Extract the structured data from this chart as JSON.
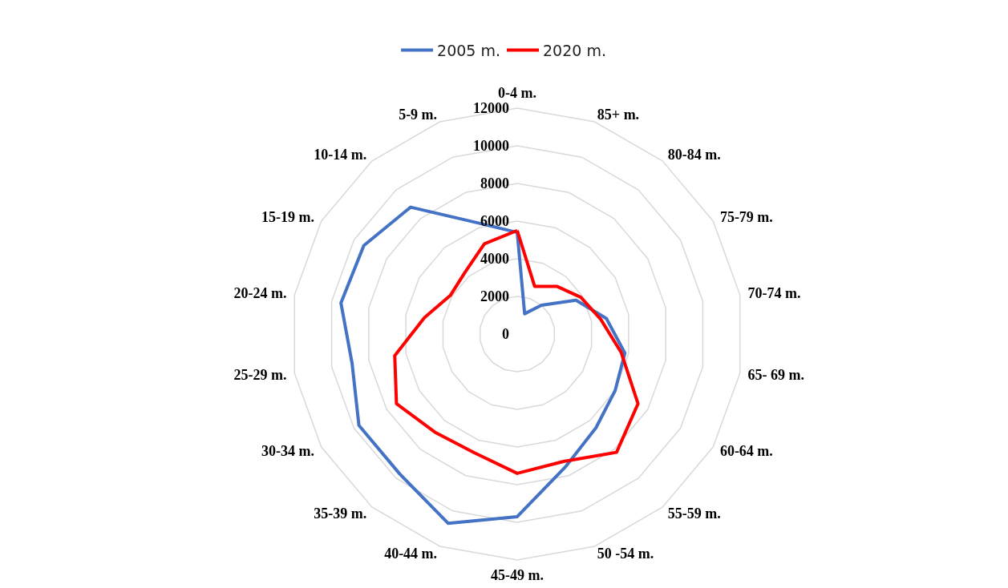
{
  "chart_data": {
    "type": "radar",
    "categories": [
      "0-4 m.",
      "85+ m.",
      "80-84 m.",
      "75-79 m.",
      "70-74 m.",
      "65- 69 m.",
      "60-64 m.",
      "55-59 m.",
      "50 -54 m.",
      "45-49 m.",
      "40-44 m.",
      "35-39 m.",
      "30-34 m.",
      "25-29 m.",
      "20-24 m.",
      "15-19 m.",
      "10-14 m.",
      "5-9 m."
    ],
    "series": [
      {
        "name": "2005 m.",
        "color": "#4472c4",
        "values": [
          5400,
          1150,
          2000,
          3600,
          4800,
          5800,
          6000,
          6500,
          7500,
          9700,
          10700,
          9700,
          9700,
          8900,
          9500,
          9400,
          8800,
          6300
        ]
      },
      {
        "name": "2020 m.",
        "color": "#ff0000",
        "values": [
          5500,
          2700,
          3300,
          3900,
          4500,
          5600,
          7400,
          8200,
          7200,
          7400,
          6700,
          6800,
          7400,
          6600,
          5000,
          4100,
          4300,
          5100
        ]
      }
    ],
    "ylim": [
      0,
      12000
    ],
    "yticks": [
      0,
      2000,
      4000,
      6000,
      8000,
      10000,
      12000
    ],
    "grid": true,
    "legend": "top",
    "marker": "none"
  }
}
